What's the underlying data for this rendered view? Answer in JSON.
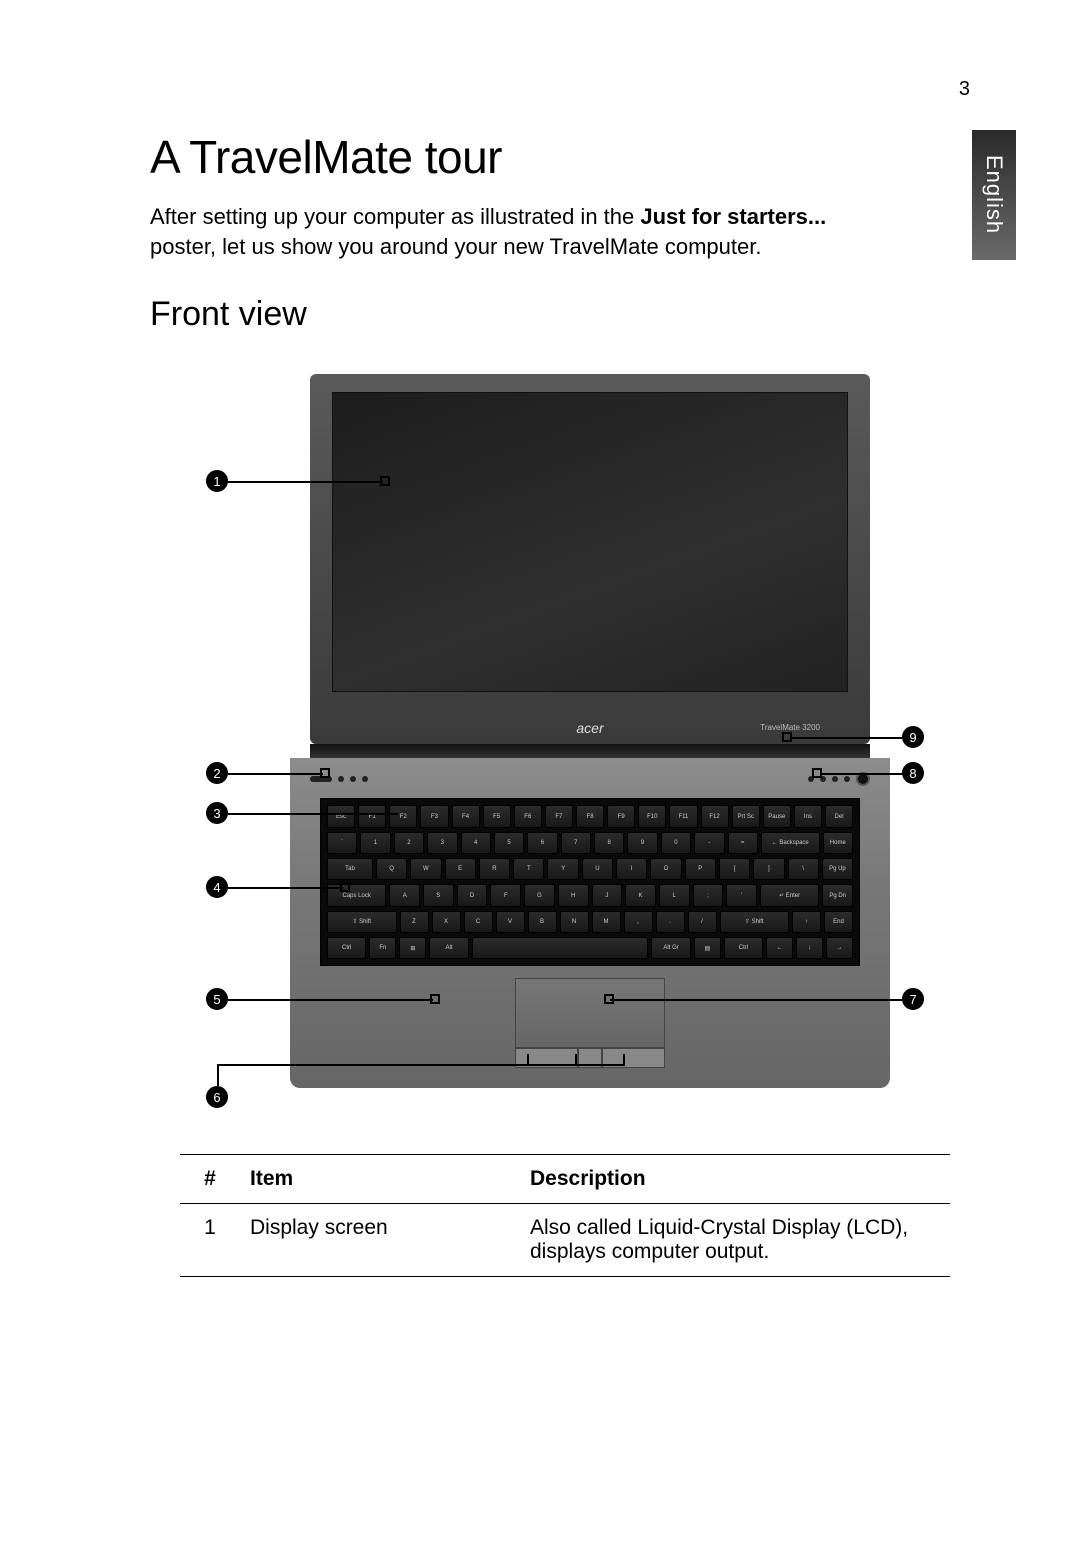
{
  "page_number": "3",
  "language_tab": "English",
  "title": "A TravelMate tour",
  "intro_pre": "After setting up your computer as illustrated in the ",
  "intro_bold": "Just for starters...",
  "intro_post": " poster, let us show you around your new TravelMate computer.",
  "subtitle": "Front view",
  "brand": "acer",
  "model": "TravelMate 3200",
  "callouts": {
    "c1": "1",
    "c2": "2",
    "c3": "3",
    "c4": "4",
    "c5": "5",
    "c6": "6",
    "c7": "7",
    "c8": "8",
    "c9": "9"
  },
  "keyboard_rows": [
    [
      "Esc",
      "F1",
      "F2",
      "F3",
      "F4",
      "F5",
      "F6",
      "F7",
      "F8",
      "F9",
      "F10",
      "F11",
      "F12",
      "Prt Sc",
      "Pause",
      "Ins",
      "Del"
    ],
    [
      "`",
      "1",
      "2",
      "3",
      "4",
      "5",
      "6",
      "7",
      "8",
      "9",
      "0",
      "-",
      "=",
      "← Backspace",
      "Home"
    ],
    [
      "Tab",
      "Q",
      "W",
      "E",
      "R",
      "T",
      "Y",
      "U",
      "I",
      "O",
      "P",
      "[",
      "]",
      "\\",
      "Pg Up"
    ],
    [
      "Caps Lock",
      "A",
      "S",
      "D",
      "F",
      "G",
      "H",
      "J",
      "K",
      "L",
      ";",
      "'",
      "↵ Enter",
      "Pg Dn"
    ],
    [
      "⇧ Shift",
      "Z",
      "X",
      "C",
      "V",
      "B",
      "N",
      "M",
      ",",
      ".",
      "/",
      "⇧ Shift",
      "↑",
      "End"
    ],
    [
      "Ctrl",
      "Fn",
      "⊞",
      "Alt",
      " ",
      "Alt Gr",
      "▤",
      "Ctrl",
      "←",
      "↓",
      "→"
    ]
  ],
  "table": {
    "headers": {
      "num": "#",
      "item": "Item",
      "desc": "Description"
    },
    "rows": [
      {
        "num": "1",
        "item": "Display screen",
        "desc": "Also called Liquid-Crystal Display (LCD), displays computer output."
      }
    ]
  },
  "colors": {
    "page_bg": "#ffffff",
    "text": "#000000",
    "tab_grad_top": "#2a2a2a",
    "tab_grad_bot": "#6a6a6a",
    "screen_bezel_top": "#5a5a5a",
    "screen_bezel_bot": "#3a3a3a",
    "base_top": "#8c8c8c",
    "base_bot": "#666666",
    "key_bg": "#191919"
  }
}
